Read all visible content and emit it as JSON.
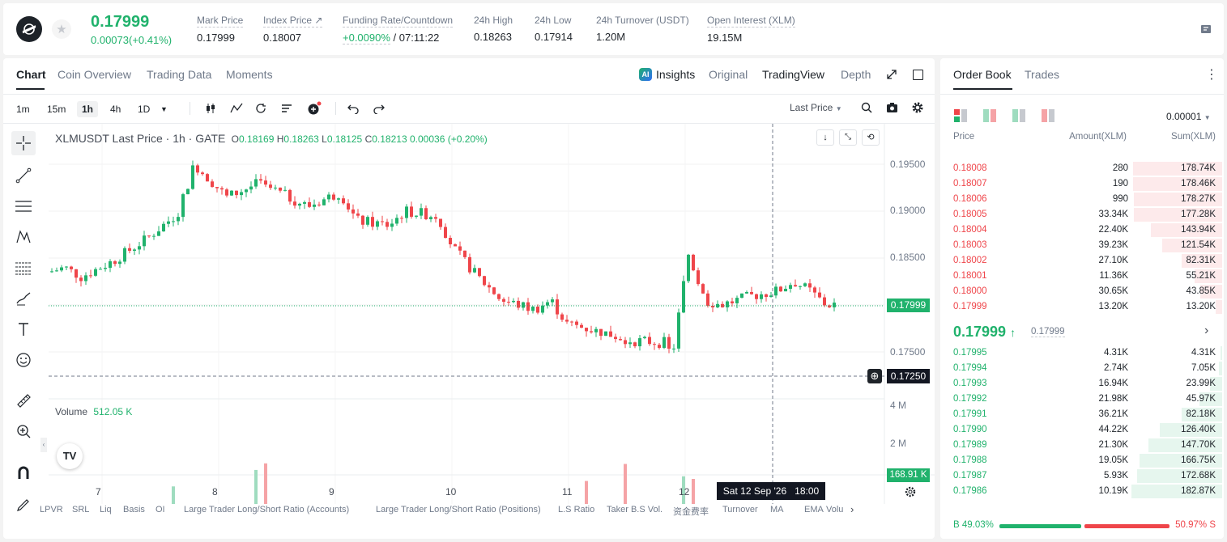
{
  "ticker": {
    "price": "0.17999",
    "change": "0.00073(+0.41%)"
  },
  "stats": [
    {
      "label": "Mark Price",
      "value": "0.17999"
    },
    {
      "label": "Index Price ↗",
      "value": "0.18007"
    },
    {
      "label": "Funding Rate/Countdown",
      "value_a": "+0.0090%",
      "value_b": "/ 07:11:22"
    },
    {
      "label": "24h High",
      "value": "0.18263"
    },
    {
      "label": "24h Low",
      "value": "0.17914"
    },
    {
      "label": "24h Turnover (USDT)",
      "value": "1.20M"
    },
    {
      "label": "Open Interest (XLM)",
      "value": "19.15M"
    }
  ],
  "chart_tabs": [
    "Chart",
    "Coin Overview",
    "Trading Data",
    "Moments"
  ],
  "view_tabs": {
    "insights": "Insights",
    "original": "Original",
    "tradingview": "TradingView",
    "depth": "Depth"
  },
  "timeframes": [
    "1m",
    "15m",
    "1h",
    "4h",
    "1D"
  ],
  "price_type": "Last Price",
  "legend": {
    "symbol": "XLMUSDT Last Price · 1h · GATE",
    "o_label": "O",
    "o": "0.18169",
    "h_label": "H",
    "h": "0.18263",
    "l_label": "L",
    "l": "0.18125",
    "c_label": "C",
    "c": "0.18213",
    "chg": "0.00036 (+0.20%)"
  },
  "price_axis": [
    "0.19500",
    "0.19000",
    "0.18500",
    "0.18000",
    "0.17500"
  ],
  "last_price_label": "0.17999",
  "cross_price_label": "0.17250",
  "volume": {
    "label": "Volume",
    "value": "512.05 K",
    "axis": [
      "4 M",
      "2 M"
    ],
    "badge": "168.91 K"
  },
  "x_axis": [
    "7",
    "8",
    "9",
    "10",
    "11",
    "12"
  ],
  "cursor_time": "Sat 12 Sep '26   18:00",
  "indicators": [
    "LPVR",
    "SRL",
    "Liq",
    "Basis",
    "OI",
    "Large Trader Long/Short Ratio (Accounts)",
    "Large Trader Long/Short Ratio (Positions)",
    "L.S Ratio",
    "Taker B.S Vol.",
    "资金费率",
    "Turnover",
    "MA",
    "EMA",
    "Volu"
  ],
  "book_tabs": [
    "Order Book",
    "Trades"
  ],
  "precision": "0.00001",
  "book_headers": {
    "price": "Price",
    "amount": "Amount(XLM)",
    "sum": "Sum(XLM)"
  },
  "asks": [
    {
      "price": "0.18008",
      "amount": "280",
      "sum": "178.74K",
      "depth": 0.98
    },
    {
      "price": "0.18007",
      "amount": "190",
      "sum": "178.46K",
      "depth": 0.98
    },
    {
      "price": "0.18006",
      "amount": "990",
      "sum": "178.27K",
      "depth": 0.97
    },
    {
      "price": "0.18005",
      "amount": "33.34K",
      "sum": "177.28K",
      "depth": 0.97
    },
    {
      "price": "0.18004",
      "amount": "22.40K",
      "sum": "143.94K",
      "depth": 0.79
    },
    {
      "price": "0.18003",
      "amount": "39.23K",
      "sum": "121.54K",
      "depth": 0.66
    },
    {
      "price": "0.18002",
      "amount": "27.10K",
      "sum": "82.31K",
      "depth": 0.45
    },
    {
      "price": "0.18001",
      "amount": "11.36K",
      "sum": "55.21K",
      "depth": 0.3
    },
    {
      "price": "0.18000",
      "amount": "30.65K",
      "sum": "43.85K",
      "depth": 0.24
    },
    {
      "price": "0.17999",
      "amount": "13.20K",
      "sum": "13.20K",
      "depth": 0.07
    }
  ],
  "mid": {
    "price": "0.17999",
    "arrow": "↑",
    "mark": "0.17999"
  },
  "bids": [
    {
      "price": "0.17995",
      "amount": "4.31K",
      "sum": "4.31K",
      "depth": 0.02
    },
    {
      "price": "0.17994",
      "amount": "2.74K",
      "sum": "7.05K",
      "depth": 0.04
    },
    {
      "price": "0.17993",
      "amount": "16.94K",
      "sum": "23.99K",
      "depth": 0.13
    },
    {
      "price": "0.17992",
      "amount": "21.98K",
      "sum": "45.97K",
      "depth": 0.25
    },
    {
      "price": "0.17991",
      "amount": "36.21K",
      "sum": "82.18K",
      "depth": 0.45
    },
    {
      "price": "0.17990",
      "amount": "44.22K",
      "sum": "126.40K",
      "depth": 0.69
    },
    {
      "price": "0.17989",
      "amount": "21.30K",
      "sum": "147.70K",
      "depth": 0.81
    },
    {
      "price": "0.17988",
      "amount": "19.05K",
      "sum": "166.75K",
      "depth": 0.91
    },
    {
      "price": "0.17987",
      "amount": "5.93K",
      "sum": "172.68K",
      "depth": 0.94
    },
    {
      "price": "0.17986",
      "amount": "10.19K",
      "sum": "182.87K",
      "depth": 1.0
    }
  ],
  "ratio": {
    "buy_label": "B",
    "buy": "49.03%",
    "sell": "50.97%",
    "sell_label": "S",
    "buy_fraction": 0.4903
  },
  "colors": {
    "up": "#20b26c",
    "down": "#ef454a",
    "vol_up": "#9fdcbf",
    "vol_down": "#f5a3a6"
  }
}
